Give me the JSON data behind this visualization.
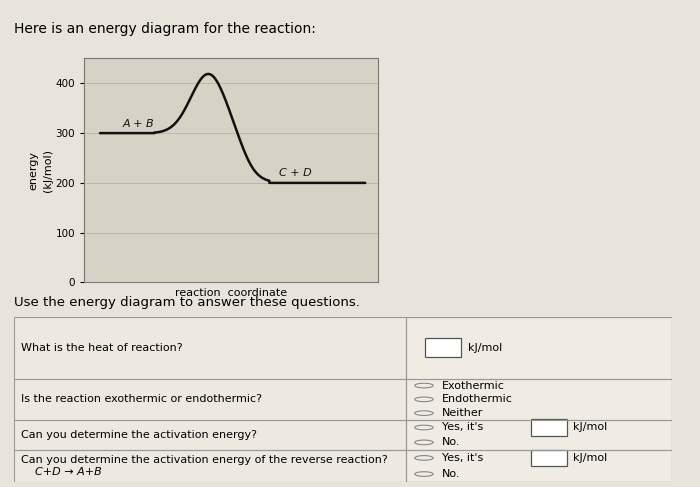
{
  "title": "Here is an energy diagram for the reaction:",
  "subtitle": "Use the energy diagram to answer these questions.",
  "ylabel": "energy\n(kJ/mol)",
  "xlabel": "reaction  coordinate",
  "ylim": [
    0,
    450
  ],
  "yticks": [
    0,
    100,
    200,
    300,
    400
  ],
  "bg_color": "#e8e4dc",
  "plot_bg": "#d8d2c6",
  "curve_color": "#111111",
  "reactant_level": 300,
  "product_level": 200,
  "peak_level": 420,
  "label_AB": "A + B",
  "label_CD": "C + D",
  "q1": "What is the heat of reaction?",
  "q2": "Is the reaction exothermic or endothermic?",
  "q3": "Can you determine the activation energy?",
  "q4": "Can you determine the activation energy of the reverse reaction?",
  "q4b": "    C+D → A+B",
  "a1_opts": [
    "kJ/mol"
  ],
  "a2_opts": [
    "Exothermic",
    "Endothermic",
    "Neither"
  ],
  "a3_opts": [
    "Yes, it's",
    "No."
  ],
  "a4_opts": [
    "Yes, it's",
    "No."
  ]
}
